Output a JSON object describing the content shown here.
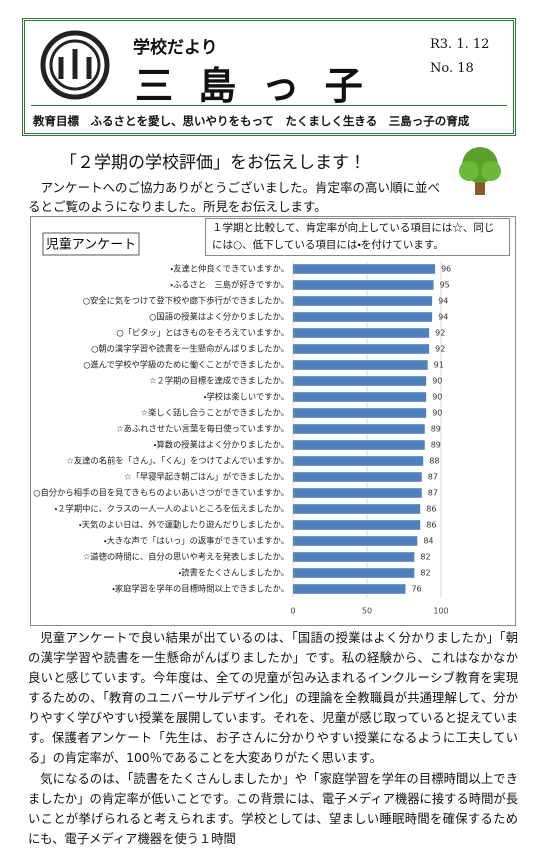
{
  "header": {
    "paper_name": "学校だより",
    "school": "三 島 っ 子",
    "date": "R3. 1. 12",
    "issue": "No. 18",
    "motto": "教育目標　ふるさとを愛し、思いやりをもって　たくましく生きる　三島っ子の育成"
  },
  "headline": "「２学期の学校評価」をお伝えします！",
  "intro": "アンケートへのご協力ありがとうございました。肯定率の高い順に並べるとご覧のようになりました。所見をお伝えします。",
  "note": "１学期と比較して、肯定率が向上している項目には☆、同じには○、低下している項目には・を付けています。",
  "chart_data": {
    "type": "bar",
    "orientation": "horizontal",
    "title": "児童アンケート",
    "color": "#4f81bd",
    "categories": [
      "・友達と仲良くできていますか。",
      "・ふるさと　三島が好きですか。",
      "○安全に気をつけて登下校や廊下歩行ができましたか。",
      "○国語の授業はよく分かりましたか。",
      "○「ピタッ」とはきものをそろえていますか。",
      "○朝の漢字学習や読書を一生懸命がんばりましたか。",
      "○進んで学校や学級のために働くことができましたか。",
      "☆２学期の目標を達成できましたか。",
      "・学校は楽しいですか。",
      "☆楽しく話し合うことができましたか。",
      "☆あふれさせたい言葉を毎日使っていますか。",
      "・算数の授業はよく分かりましたか。",
      "☆友達の名前を「さん」、「くん」をつけてよんでいますか。",
      "☆「早寝早起き朝ごはん」ができましたか。",
      "○自分から相手の目を見てきもちのよいあいさつができていますか。",
      "・２学期中に、クラスの一人一人のよいところを伝えましたか。",
      "・天気のよい日は、外で運動したり遊んだりしましたか。",
      "・大きな声で「はいっ」の返事ができていますか。",
      "☆道徳の時間に、自分の思いや考えを発表しましたか。",
      "・読書をたくさんしましたか。",
      "・家庭学習を学年の目標時間以上できましたか。"
    ],
    "values": [
      96,
      95,
      94,
      94,
      92,
      92,
      91,
      90,
      90,
      90,
      89,
      89,
      88,
      87,
      87,
      86,
      86,
      84,
      82,
      82,
      76
    ],
    "xlim": [
      0,
      100
    ],
    "xticks": [
      0,
      50,
      100
    ]
  },
  "paragraphs": [
    "児童アンケートで良い結果が出ているのは、「国語の授業はよく分かりましたか」「朝の漢字学習や読書を一生懸命がんばりましたか」です。私の経験から、これはなかなか良いと感じています。今年度は、全ての児童が包み込まれるインクルーシブ教育を実現するための、「教育のユニバーサルデザイン化」の理論を全教職員が共通理解して、分かりやすく学びやすい授業を展開しています。それを、児童が感じ取っていると捉えています。保護者アンケート「先生は、お子さんに分かりやすい授業になるように工夫している」の肯定率が、100％であることを大変ありがたく思います。",
    "気になるのは、「読書をたくさんしましたか」や「家庭学習を学年の目標時間以上できましたか」の肯定率が低いことです。この背景には、電子メディア機器に接する時間が長いことが挙げられると考えられます。学校としては、望ましい睡眠時間を確保するためにも、電子メディア機器を使う１時間"
  ]
}
